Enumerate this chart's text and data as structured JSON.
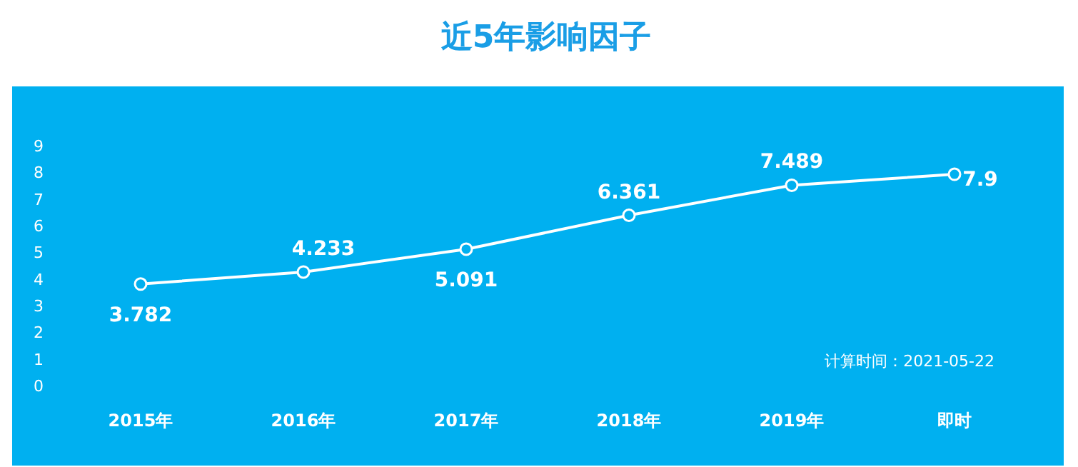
{
  "chart_data": {
    "type": "line",
    "title": "近5年影响因子",
    "categories": [
      "2015年",
      "2016年",
      "2017年",
      "2018年",
      "2019年",
      "即时"
    ],
    "series": [
      {
        "color": "#ffffff",
        "values": [
          3.782,
          4.233,
          5.091,
          6.361,
          7.489,
          7.9
        ]
      }
    ],
    "ylim": [
      0,
      9
    ],
    "yticks": [
      0,
      1,
      2,
      3,
      4,
      5,
      6,
      7,
      8,
      9
    ],
    "marker": "circle",
    "line_style": "solid",
    "data_labels": true,
    "annotations": [
      "计算时间：2021-05-22"
    ]
  }
}
